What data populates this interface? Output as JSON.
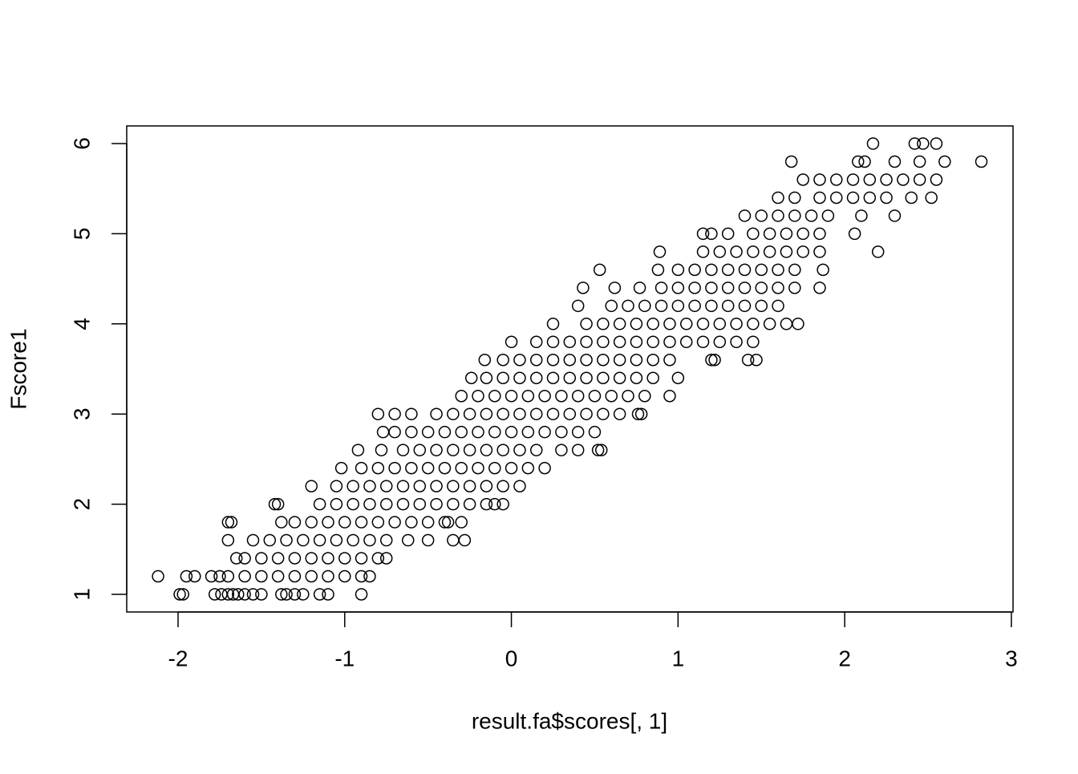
{
  "chart_data": {
    "type": "scatter",
    "x_label": "result.fa$scores[, 1]",
    "y_label": "Fscore1",
    "xlim": [
      -2.308,
      3.01
    ],
    "ylim": [
      0.804,
      6.196
    ],
    "xticks": [
      -2,
      -1,
      0,
      1,
      2,
      3
    ],
    "yticks": [
      1,
      2,
      3,
      4,
      5,
      6
    ],
    "color": "#000000",
    "x": [
      -1.99,
      -1.97,
      -1.78,
      -1.74,
      -1.7,
      -1.67,
      -1.64,
      -1.6,
      -1.55,
      -1.5,
      -1.38,
      -1.35,
      -1.3,
      -1.25,
      -1.15,
      -1.1,
      -0.9,
      -2.12,
      -1.95,
      -1.9,
      -1.8,
      -1.75,
      -1.7,
      -1.6,
      -1.5,
      -1.4,
      -1.3,
      -1.2,
      -1.1,
      -1.0,
      -0.9,
      -0.85,
      -1.65,
      -1.6,
      -1.5,
      -1.4,
      -1.3,
      -1.2,
      -1.1,
      -1.0,
      -0.9,
      -0.8,
      -0.75,
      -1.7,
      -1.55,
      -1.45,
      -1.35,
      -1.25,
      -1.15,
      -1.05,
      -0.95,
      -0.85,
      -0.75,
      -0.62,
      -0.5,
      -0.35,
      -0.28,
      -1.7,
      -1.68,
      -1.38,
      -1.3,
      -1.2,
      -1.1,
      -1.0,
      -0.9,
      -0.8,
      -0.7,
      -0.6,
      -0.5,
      -0.4,
      -0.38,
      -0.3,
      -1.42,
      -1.4,
      -1.15,
      -1.05,
      -0.95,
      -0.85,
      -0.75,
      -0.65,
      -0.55,
      -0.45,
      -0.35,
      -0.25,
      -0.15,
      -0.05,
      -0.1,
      -1.2,
      -1.05,
      -0.95,
      -0.85,
      -0.75,
      -0.65,
      -0.55,
      -0.45,
      -0.35,
      -0.25,
      -0.15,
      -0.05,
      0.05,
      -1.02,
      -0.9,
      -0.8,
      -0.7,
      -0.6,
      -0.5,
      -0.4,
      -0.3,
      -0.2,
      -0.1,
      0.0,
      0.1,
      0.2,
      -0.92,
      -0.78,
      -0.65,
      -0.55,
      -0.45,
      -0.35,
      -0.25,
      -0.15,
      -0.05,
      0.05,
      0.15,
      0.3,
      0.4,
      0.52,
      0.54,
      -0.77,
      -0.7,
      -0.6,
      -0.5,
      -0.4,
      -0.3,
      -0.2,
      -0.1,
      0.0,
      0.1,
      0.2,
      0.3,
      0.4,
      0.5,
      -0.8,
      -0.7,
      -0.6,
      -0.45,
      -0.35,
      -0.25,
      -0.15,
      -0.05,
      0.05,
      0.15,
      0.25,
      0.35,
      0.45,
      0.55,
      0.65,
      0.76,
      0.78,
      -0.3,
      -0.2,
      -0.1,
      0.0,
      0.1,
      0.2,
      0.3,
      0.4,
      0.5,
      0.6,
      0.7,
      0.8,
      0.95,
      -0.24,
      -0.15,
      -0.05,
      0.05,
      0.15,
      0.25,
      0.35,
      0.45,
      0.55,
      0.65,
      0.75,
      0.85,
      1.0,
      -0.16,
      -0.05,
      0.05,
      0.15,
      0.25,
      0.35,
      0.45,
      0.55,
      0.65,
      0.75,
      0.85,
      0.95,
      1.2,
      1.22,
      1.42,
      1.47,
      0.0,
      0.15,
      0.25,
      0.35,
      0.45,
      0.55,
      0.65,
      0.75,
      0.85,
      0.95,
      1.05,
      1.15,
      1.25,
      1.35,
      1.45,
      0.25,
      0.45,
      0.55,
      0.65,
      0.75,
      0.85,
      0.95,
      1.05,
      1.15,
      1.25,
      1.35,
      1.45,
      1.55,
      1.65,
      1.72,
      0.4,
      0.6,
      0.7,
      0.8,
      0.9,
      1.0,
      1.1,
      1.2,
      1.3,
      1.4,
      1.5,
      1.6,
      0.43,
      0.62,
      0.77,
      0.9,
      1.0,
      1.1,
      1.2,
      1.3,
      1.4,
      1.5,
      1.6,
      1.7,
      1.85,
      0.53,
      0.88,
      1.0,
      1.1,
      1.2,
      1.3,
      1.4,
      1.5,
      1.6,
      1.7,
      1.87,
      0.89,
      1.15,
      1.25,
      1.35,
      1.45,
      1.55,
      1.65,
      1.75,
      1.85,
      2.2,
      1.15,
      1.2,
      1.3,
      1.45,
      1.55,
      1.65,
      1.75,
      1.85,
      2.06,
      1.4,
      1.5,
      1.6,
      1.7,
      1.8,
      1.9,
      2.1,
      2.3,
      1.6,
      1.7,
      1.85,
      1.95,
      2.05,
      2.15,
      2.25,
      2.4,
      2.52,
      1.75,
      1.85,
      1.95,
      2.05,
      2.15,
      2.25,
      2.35,
      2.45,
      2.55,
      1.68,
      2.08,
      2.12,
      2.3,
      2.45,
      2.6,
      2.82,
      2.17,
      2.42,
      2.47,
      2.55
    ],
    "values": [
      1,
      1,
      1,
      1,
      1,
      1,
      1,
      1,
      1,
      1,
      1,
      1,
      1,
      1,
      1,
      1,
      1,
      1.2,
      1.2,
      1.2,
      1.2,
      1.2,
      1.2,
      1.2,
      1.2,
      1.2,
      1.2,
      1.2,
      1.2,
      1.2,
      1.2,
      1.2,
      1.4,
      1.4,
      1.4,
      1.4,
      1.4,
      1.4,
      1.4,
      1.4,
      1.4,
      1.4,
      1.4,
      1.6,
      1.6,
      1.6,
      1.6,
      1.6,
      1.6,
      1.6,
      1.6,
      1.6,
      1.6,
      1.6,
      1.6,
      1.6,
      1.6,
      1.8,
      1.8,
      1.8,
      1.8,
      1.8,
      1.8,
      1.8,
      1.8,
      1.8,
      1.8,
      1.8,
      1.8,
      1.8,
      1.8,
      1.8,
      2,
      2,
      2,
      2,
      2,
      2,
      2,
      2,
      2,
      2,
      2,
      2,
      2,
      2,
      2,
      2.2,
      2.2,
      2.2,
      2.2,
      2.2,
      2.2,
      2.2,
      2.2,
      2.2,
      2.2,
      2.2,
      2.2,
      2.2,
      2.4,
      2.4,
      2.4,
      2.4,
      2.4,
      2.4,
      2.4,
      2.4,
      2.4,
      2.4,
      2.4,
      2.4,
      2.4,
      2.6,
      2.6,
      2.6,
      2.6,
      2.6,
      2.6,
      2.6,
      2.6,
      2.6,
      2.6,
      2.6,
      2.6,
      2.6,
      2.6,
      2.6,
      2.8,
      2.8,
      2.8,
      2.8,
      2.8,
      2.8,
      2.8,
      2.8,
      2.8,
      2.8,
      2.8,
      2.8,
      2.8,
      2.8,
      3,
      3,
      3,
      3,
      3,
      3,
      3,
      3,
      3,
      3,
      3,
      3,
      3,
      3,
      3,
      3,
      3,
      3.2,
      3.2,
      3.2,
      3.2,
      3.2,
      3.2,
      3.2,
      3.2,
      3.2,
      3.2,
      3.2,
      3.2,
      3.2,
      3.4,
      3.4,
      3.4,
      3.4,
      3.4,
      3.4,
      3.4,
      3.4,
      3.4,
      3.4,
      3.4,
      3.4,
      3.4,
      3.6,
      3.6,
      3.6,
      3.6,
      3.6,
      3.6,
      3.6,
      3.6,
      3.6,
      3.6,
      3.6,
      3.6,
      3.6,
      3.6,
      3.6,
      3.6,
      3.8,
      3.8,
      3.8,
      3.8,
      3.8,
      3.8,
      3.8,
      3.8,
      3.8,
      3.8,
      3.8,
      3.8,
      3.8,
      3.8,
      3.8,
      4,
      4,
      4,
      4,
      4,
      4,
      4,
      4,
      4,
      4,
      4,
      4,
      4,
      4,
      4,
      4.2,
      4.2,
      4.2,
      4.2,
      4.2,
      4.2,
      4.2,
      4.2,
      4.2,
      4.2,
      4.2,
      4.2,
      4.4,
      4.4,
      4.4,
      4.4,
      4.4,
      4.4,
      4.4,
      4.4,
      4.4,
      4.4,
      4.4,
      4.4,
      4.4,
      4.6,
      4.6,
      4.6,
      4.6,
      4.6,
      4.6,
      4.6,
      4.6,
      4.6,
      4.6,
      4.6,
      4.8,
      4.8,
      4.8,
      4.8,
      4.8,
      4.8,
      4.8,
      4.8,
      4.8,
      4.8,
      5,
      5,
      5,
      5,
      5,
      5,
      5,
      5,
      5,
      5.2,
      5.2,
      5.2,
      5.2,
      5.2,
      5.2,
      5.2,
      5.2,
      5.4,
      5.4,
      5.4,
      5.4,
      5.4,
      5.4,
      5.4,
      5.4,
      5.4,
      5.6,
      5.6,
      5.6,
      5.6,
      5.6,
      5.6,
      5.6,
      5.6,
      5.6,
      5.8,
      5.8,
      5.8,
      5.8,
      5.8,
      5.8,
      5.8,
      6,
      6,
      6,
      6
    ]
  }
}
